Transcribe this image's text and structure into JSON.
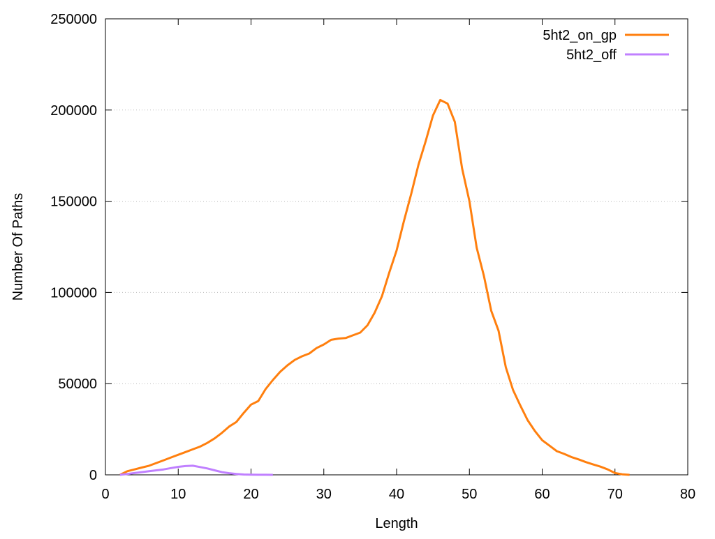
{
  "chart_data": {
    "type": "line",
    "xlabel": "Length",
    "ylabel": "Number Of Paths",
    "xlim": [
      0,
      80
    ],
    "xticks": [
      0,
      10,
      20,
      30,
      40,
      50,
      60,
      70,
      80
    ],
    "ylim": [
      0,
      250000
    ],
    "yticks": [
      0,
      50000,
      100000,
      150000,
      200000,
      250000
    ],
    "ygrid": true,
    "legend": "top-right",
    "series": [
      {
        "name": "5ht2_on_gp",
        "color": "#ff7f0e",
        "x": [
          2,
          3,
          4,
          5,
          6,
          7,
          8,
          9,
          10,
          11,
          12,
          13,
          14,
          15,
          16,
          17,
          18,
          19,
          20,
          21,
          22,
          23,
          24,
          25,
          26,
          27,
          28,
          29,
          30,
          31,
          32,
          33,
          34,
          35,
          36,
          37,
          38,
          39,
          40,
          41,
          42,
          43,
          44,
          45,
          46,
          47,
          48,
          49,
          50,
          51,
          52,
          53,
          54,
          55,
          56,
          57,
          58,
          59,
          60,
          61,
          62,
          63,
          64,
          65,
          66,
          67,
          68,
          69,
          70,
          71,
          72
        ],
        "values": [
          0,
          2000,
          3000,
          4000,
          5000,
          6500,
          8000,
          9500,
          11000,
          12500,
          14000,
          15500,
          17500,
          20000,
          23000,
          26500,
          29000,
          34000,
          38500,
          40500,
          47000,
          52000,
          56500,
          60000,
          63000,
          65000,
          66500,
          69500,
          71500,
          74000,
          74700,
          75000,
          76500,
          78000,
          82000,
          89000,
          98000,
          111000,
          123000,
          139000,
          154000,
          170000,
          183000,
          197000,
          205500,
          203500,
          193500,
          168000,
          150000,
          124500,
          109000,
          90000,
          79000,
          59000,
          46500,
          38000,
          30000,
          24000,
          19000,
          16000,
          13000,
          11500,
          9800,
          8500,
          7000,
          5700,
          4500,
          3000,
          1000,
          300,
          0
        ]
      },
      {
        "name": "5ht2_off",
        "color": "#c080ff",
        "x": [
          2,
          3,
          4,
          5,
          6,
          7,
          8,
          9,
          10,
          11,
          12,
          13,
          14,
          15,
          16,
          17,
          18,
          19,
          20,
          21,
          22,
          23
        ],
        "values": [
          0,
          500,
          1000,
          1500,
          2000,
          2500,
          3000,
          3700,
          4400,
          4800,
          5000,
          4300,
          3500,
          2500,
          1500,
          900,
          500,
          200,
          100,
          50,
          20,
          0
        ]
      }
    ]
  }
}
